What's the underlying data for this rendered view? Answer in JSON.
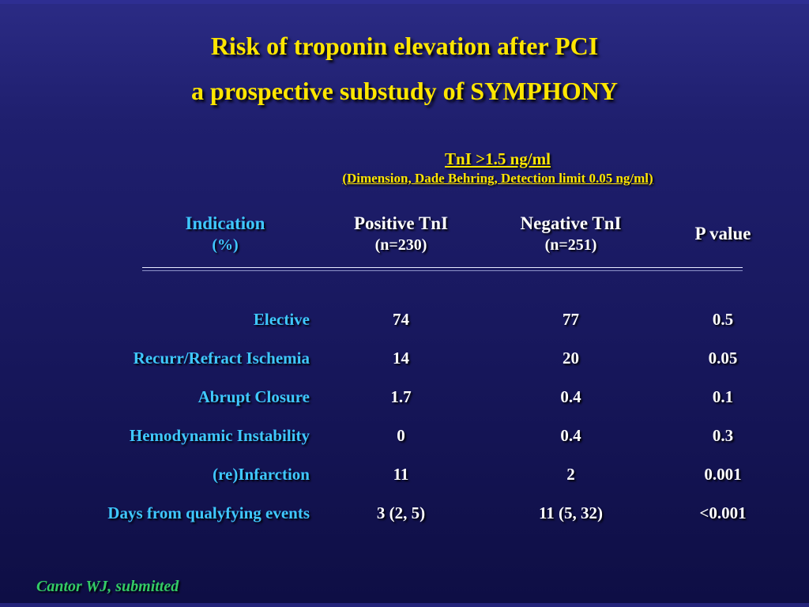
{
  "slide": {
    "title": {
      "line1": "Risk of troponin elevation after PCI",
      "line2": "a prospective substudy of SYMPHONY"
    },
    "assay": {
      "line1": "TnI >1.5 ng/ml",
      "line2": "(Dimension, Dade Behring, Detection limit 0.05 ng/ml)"
    },
    "table": {
      "headers": [
        {
          "line1": "Indication",
          "line2": "(%)"
        },
        {
          "line1": "Positive TnI",
          "line2": "(n=230)"
        },
        {
          "line1": "Negative TnI",
          "line2": "(n=251)"
        },
        {
          "line1": "P value",
          "line2": ""
        }
      ],
      "rows": [
        {
          "label": "Elective",
          "positive": "74",
          "negative": "77",
          "p": "0.5"
        },
        {
          "label": "Recurr/Refract Ischemia",
          "positive": "14",
          "negative": "20",
          "p": "0.05"
        },
        {
          "label": "Abrupt Closure",
          "positive": "1.7",
          "negative": "0.4",
          "p": "0.1"
        },
        {
          "label": "Hemodynamic Instability",
          "positive": "0",
          "negative": "0.4",
          "p": "0.3"
        },
        {
          "label": "(re)Infarction",
          "positive": "11",
          "negative": "2",
          "p": "0.001"
        },
        {
          "label": "Days from qualyfying events",
          "positive": "3 (2, 5)",
          "negative": "11 (5, 32)",
          "p": "<0.001"
        }
      ]
    },
    "footer": "Cantor WJ, submitted",
    "colors": {
      "title_yellow": "#ffe600",
      "label_cyan": "#3fc8ff",
      "value_white": "#ffffff",
      "footer_green": "#33cc66",
      "bg_top": "#2b2b85",
      "bg_bottom": "#0e0e44"
    }
  }
}
